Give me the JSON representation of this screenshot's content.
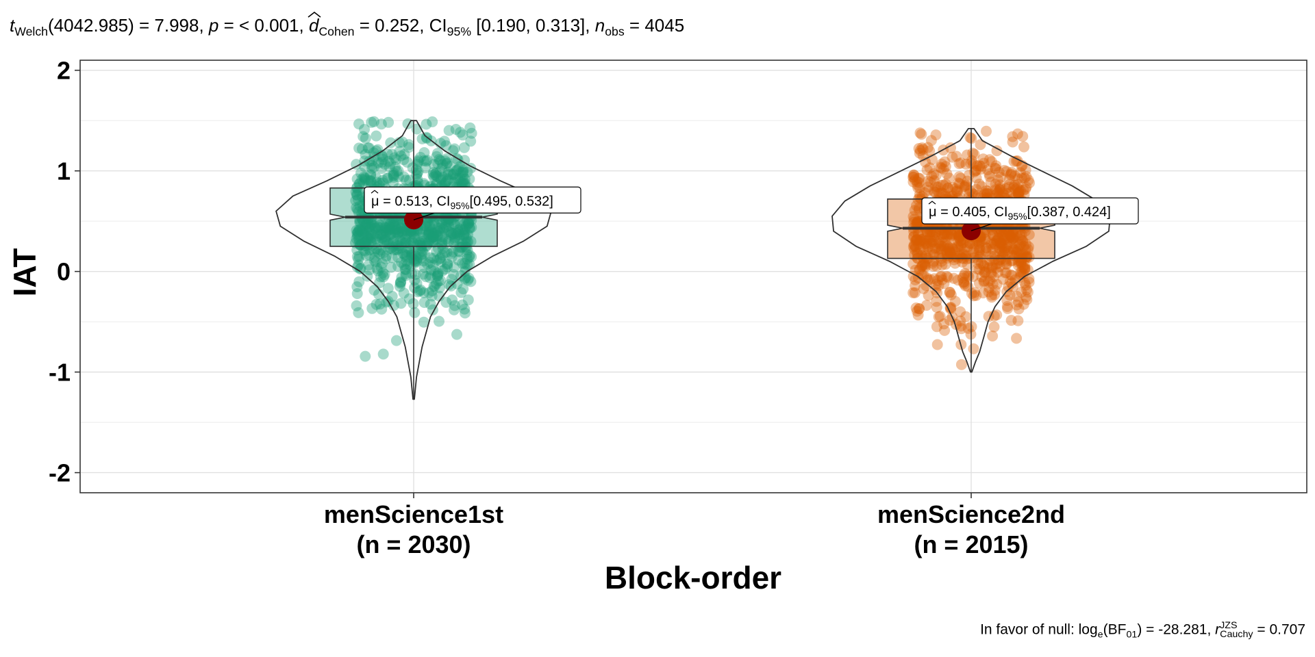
{
  "chart_data": {
    "type": "violin-box-scatter",
    "subtitle": {
      "t_label": "t",
      "t_sub": "Welch",
      "t_rest": "(4042.985) = 7.998, ",
      "p_label": "p",
      "p_rest": " = < 0.001, ",
      "d_label": "d",
      "d_sub": "Cohen",
      "d_rest": " = 0.252, CI",
      "ci_sub": "95%",
      "ci_rest": " [0.190, 0.313], ",
      "n_label": "n",
      "n_sub": "obs",
      "n_rest": " = 4045"
    },
    "caption": {
      "prefix": "In favor of null: log",
      "log_sub": "e",
      "bf_open": "(BF",
      "bf_sub": "01",
      "bf_rest": ") = -28.281, ",
      "r_label": "r",
      "r_sup": "JZS",
      "r_sub": "Cauchy",
      "r_rest": " = 0.707"
    },
    "xlabel": "Block-order",
    "ylabel": "IAT",
    "ylim": [
      -2.2,
      2.1
    ],
    "yticks": [
      -2,
      -1,
      0,
      1,
      2
    ],
    "groups": [
      {
        "name": "menScience1st",
        "n_label": "(n = 2030)",
        "color": "#1b9e77",
        "mean": 0.513,
        "mean_label_a": " = 0.513, CI",
        "mean_label_b": "[0.495, 0.532]",
        "ci": [
          0.495,
          0.532
        ],
        "box": {
          "q1": 0.25,
          "median": 0.54,
          "q3": 0.83,
          "notch": 0.03
        },
        "whisker": [
          -1.27,
          1.5
        ],
        "violin_max": 1.5,
        "violin_min": -1.27,
        "violin_profile": [
          [
            1.5,
            0.02
          ],
          [
            1.35,
            0.08
          ],
          [
            1.2,
            0.22
          ],
          [
            1.05,
            0.4
          ],
          [
            0.9,
            0.62
          ],
          [
            0.75,
            0.86
          ],
          [
            0.6,
            0.98
          ],
          [
            0.45,
            0.95
          ],
          [
            0.3,
            0.78
          ],
          [
            0.15,
            0.56
          ],
          [
            0.0,
            0.38
          ],
          [
            -0.15,
            0.26
          ],
          [
            -0.3,
            0.18
          ],
          [
            -0.45,
            0.12
          ],
          [
            -0.6,
            0.09
          ],
          [
            -0.75,
            0.06
          ],
          [
            -0.9,
            0.04
          ],
          [
            -1.05,
            0.02
          ],
          [
            -1.27,
            0.005
          ]
        ]
      },
      {
        "name": "menScience2nd",
        "n_label": "(n = 2015)",
        "color": "#d95f02",
        "mean": 0.405,
        "mean_label_a": " = 0.405, CI",
        "mean_label_b": "[0.387, 0.424]",
        "ci": [
          0.387,
          0.424
        ],
        "box": {
          "q1": 0.13,
          "median": 0.43,
          "q3": 0.72,
          "notch": 0.03
        },
        "whisker": [
          -1.0,
          1.42
        ],
        "violin_max": 1.42,
        "violin_min": -1.0,
        "violin_profile": [
          [
            1.42,
            0.02
          ],
          [
            1.3,
            0.08
          ],
          [
            1.15,
            0.28
          ],
          [
            1.0,
            0.5
          ],
          [
            0.85,
            0.72
          ],
          [
            0.7,
            0.9
          ],
          [
            0.55,
            0.99
          ],
          [
            0.4,
            0.98
          ],
          [
            0.25,
            0.82
          ],
          [
            0.1,
            0.58
          ],
          [
            -0.05,
            0.38
          ],
          [
            -0.2,
            0.25
          ],
          [
            -0.35,
            0.17
          ],
          [
            -0.5,
            0.12
          ],
          [
            -0.65,
            0.09
          ],
          [
            -0.8,
            0.06
          ],
          [
            -0.9,
            0.03
          ],
          [
            -1.0,
            0.005
          ]
        ]
      }
    ]
  }
}
